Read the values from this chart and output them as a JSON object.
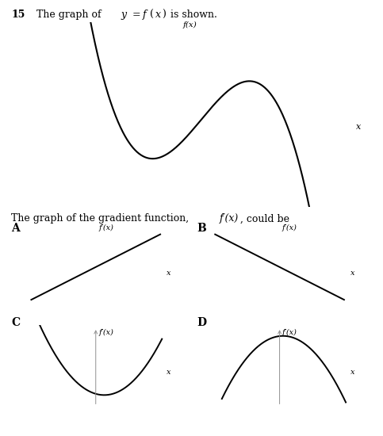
{
  "bg_color": "#ffffff",
  "curve_color": "#000000",
  "axis_color": "#909090",
  "text_color": "#000000",
  "main_curve_phase": -1.1,
  "main_curve_amp": 1.85,
  "main_xlim": [
    -3.3,
    4.5
  ],
  "main_ylim": [
    -2.4,
    2.7
  ]
}
